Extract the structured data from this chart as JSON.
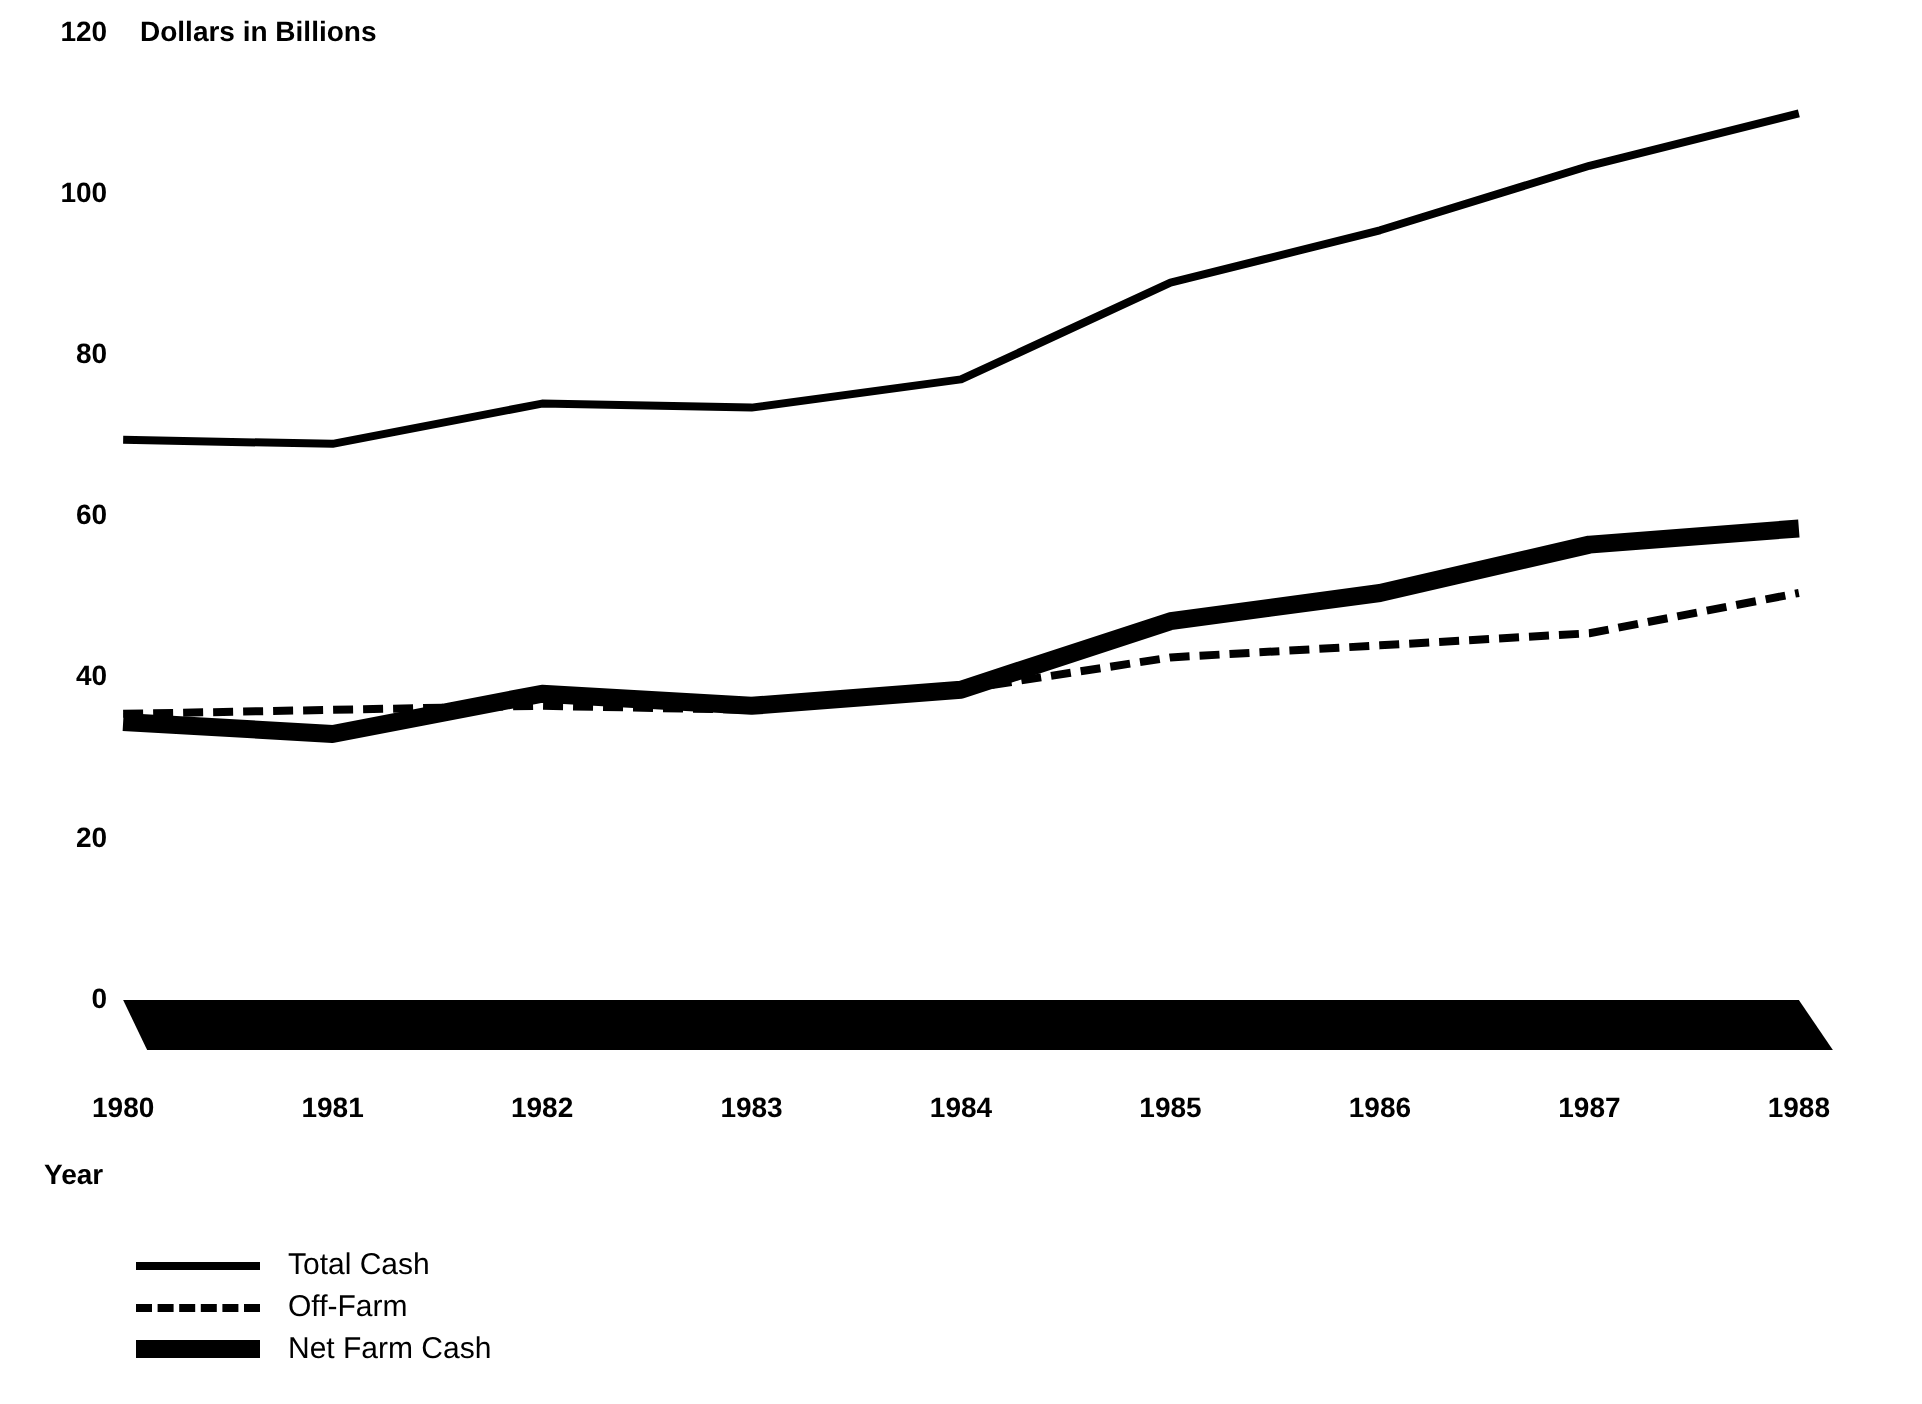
{
  "chart_data": {
    "type": "line",
    "ylabel": "Dollars in Billions",
    "xlabel": "Year",
    "categories": [
      "1980",
      "1981",
      "1982",
      "1983",
      "1984",
      "1985",
      "1986",
      "1987",
      "1988"
    ],
    "series": [
      {
        "name": "Total Cash",
        "color": "#000000",
        "line_style": "solid",
        "values": [
          69.5,
          69,
          74,
          73.5,
          77,
          89,
          95.5,
          103.5,
          110
        ]
      },
      {
        "name": "Off-Farm",
        "color": "#000000",
        "line_style": "dashed",
        "values": [
          35.5,
          36,
          36.5,
          36,
          38.5,
          42.5,
          44,
          45.5,
          50.5
        ]
      },
      {
        "name": "Net Farm Cash",
        "color": "#000000",
        "line_style": "solid",
        "values": [
          34.5,
          33,
          38,
          36.5,
          38.5,
          47,
          50.5,
          56.5,
          58.5
        ]
      }
    ],
    "ylim": [
      0,
      120
    ],
    "yticks": [
      0,
      20,
      40,
      60,
      80,
      100,
      120
    ],
    "grid": false,
    "legend": "bottom left",
    "marker": "none"
  }
}
